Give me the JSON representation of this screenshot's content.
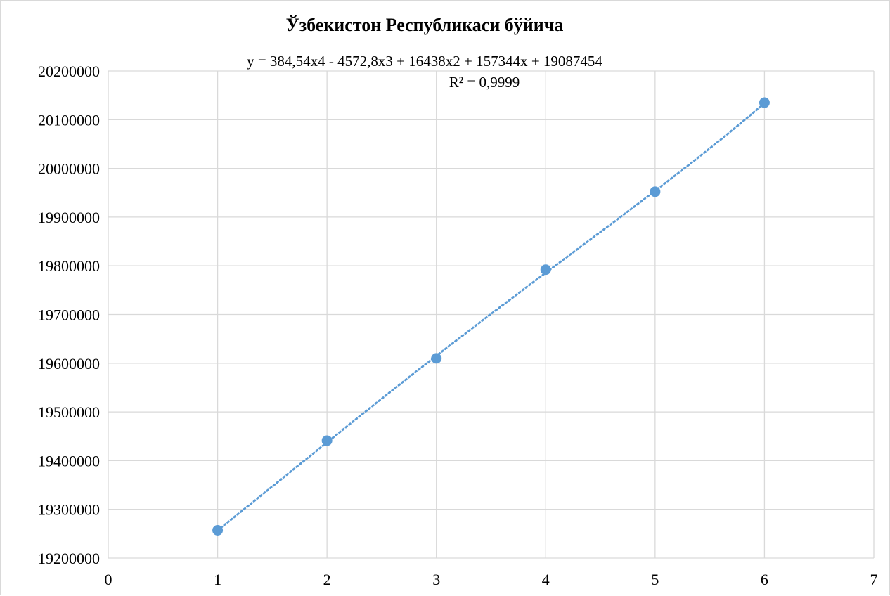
{
  "chart_data": {
    "type": "scatter",
    "title": "Ўзбекистон Республикаси бўйича",
    "xlabel": "",
    "ylabel": "",
    "xlim": [
      0,
      7
    ],
    "ylim": [
      19200000,
      20200000
    ],
    "x_ticks": [
      0,
      1,
      2,
      3,
      4,
      5,
      6,
      7
    ],
    "y_ticks": [
      19200000,
      19300000,
      19400000,
      19500000,
      19600000,
      19700000,
      19800000,
      19900000,
      20000000,
      20100000,
      20200000
    ],
    "grid": true,
    "legend": "none",
    "series": [
      {
        "x": [
          1,
          2,
          3,
          4,
          5,
          6
        ],
        "values": [
          19257000,
          19441000,
          19610000,
          19792000,
          19952000,
          20135000
        ],
        "marker_color": "#5b9bd5"
      }
    ],
    "trendline": {
      "type": "polynomial",
      "order": 4,
      "coefficients": [
        384.54,
        -4572.8,
        16438,
        157344,
        19087454
      ],
      "style": "dotted",
      "color": "#5b9bd5",
      "equation_label": "y = 384,54x4 - 4572,8x3 + 16438x2 + 157344x + 19087454",
      "r2_label": "R² = 0,9999"
    },
    "colors": {
      "gridline": "#d9d9d9",
      "marker": "#5b9bd5",
      "text": "#000000"
    }
  }
}
